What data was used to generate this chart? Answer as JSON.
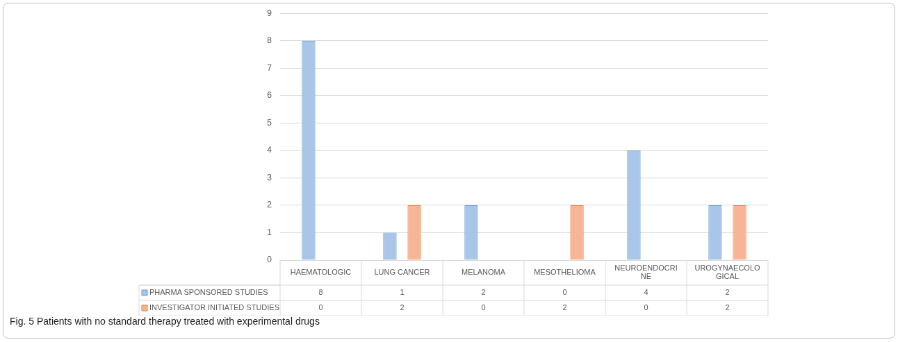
{
  "chart_data": {
    "type": "bar",
    "categories": [
      "HAEMATOLOGIC",
      "LUNG CANCER",
      "MELANOMA",
      "MESOTHELIOMA",
      "NEUROENDOCRINE",
      "UROGYNAECOLOGICAL"
    ],
    "series": [
      {
        "name": "PHARMA SPONSORED STUDIES",
        "color": "#a9c5e8",
        "values": [
          8,
          1,
          2,
          0,
          4,
          2
        ]
      },
      {
        "name": "INVESTIGATOR INITIATED STUDIES",
        "color": "#f6b597",
        "values": [
          0,
          2,
          0,
          2,
          0,
          2
        ]
      }
    ],
    "ylim": [
      0,
      9
    ],
    "yticks": [
      0,
      1,
      2,
      3,
      4,
      5,
      6,
      7,
      8,
      9
    ],
    "grid": "y",
    "legend": "bottom",
    "data_labels": true,
    "annotations": [
      "Fig. 5 Patients with no standard therapy treated with experimental drugs"
    ]
  }
}
